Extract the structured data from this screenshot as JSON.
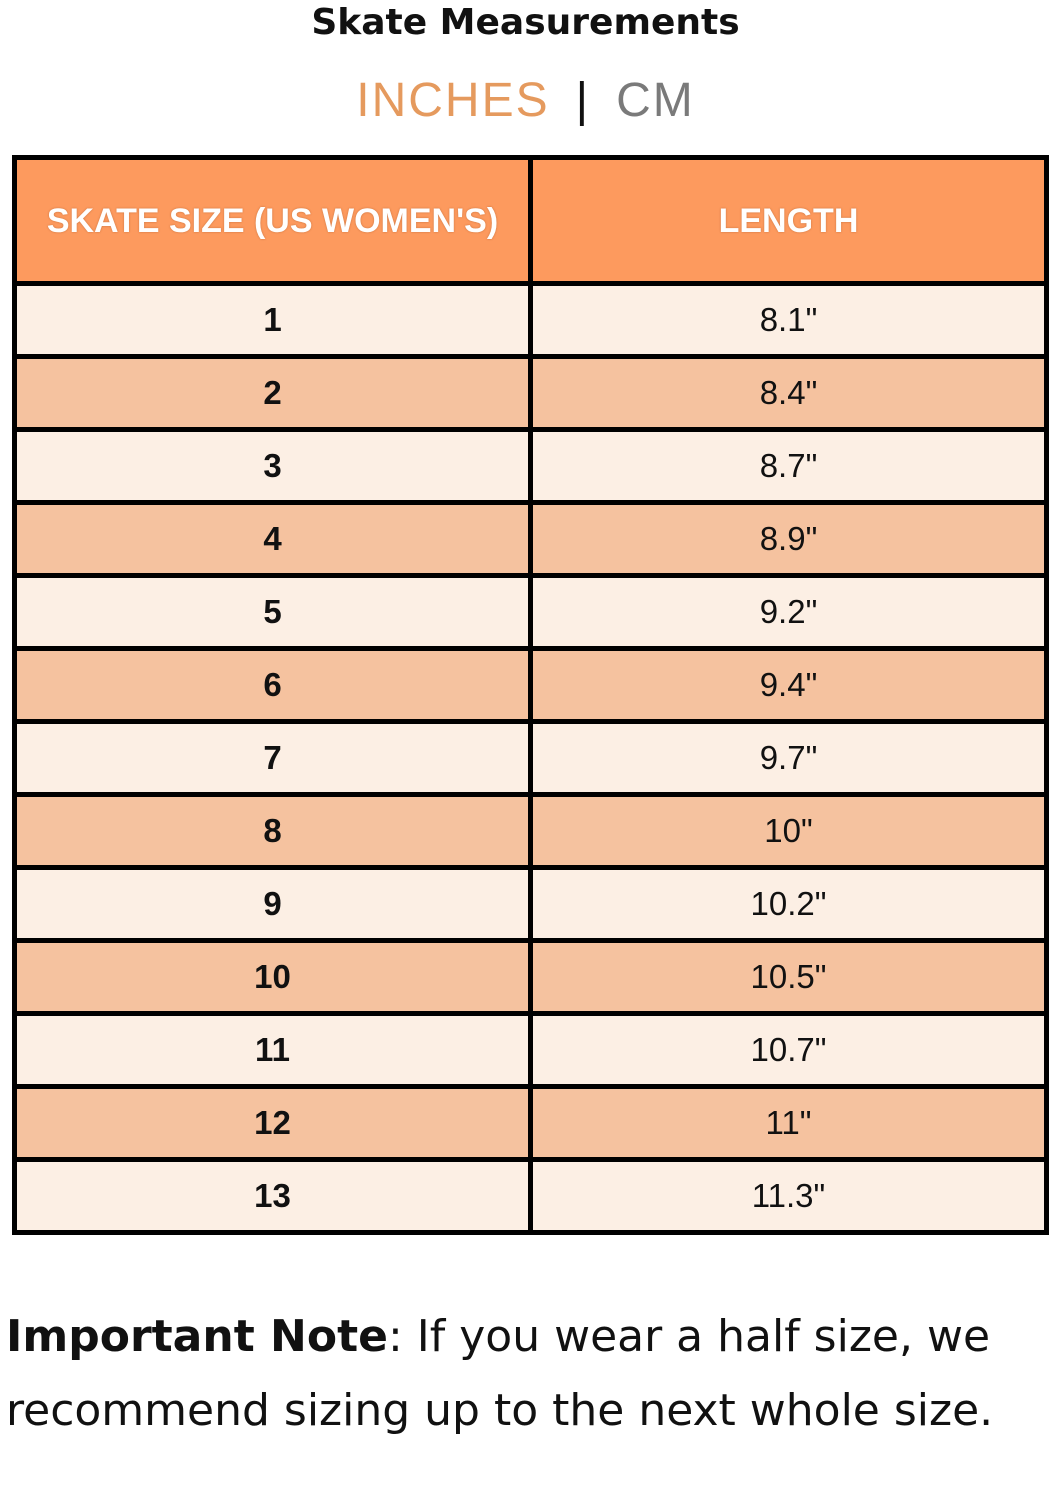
{
  "title": "Skate Measurements",
  "units": {
    "active": "INCHES",
    "separator": "|",
    "inactive": "CM",
    "active_color": "#E59A5E"
  },
  "table": {
    "headers": [
      "SKATE SIZE (US WOMEN'S)",
      "LENGTH"
    ],
    "header_color": "#FD9A5E",
    "rows": [
      {
        "size": "1",
        "length": "8.1\""
      },
      {
        "size": "2",
        "length": "8.4\""
      },
      {
        "size": "3",
        "length": "8.7\""
      },
      {
        "size": "4",
        "length": "8.9\""
      },
      {
        "size": "5",
        "length": "9.2\""
      },
      {
        "size": "6",
        "length": "9.4\""
      },
      {
        "size": "7",
        "length": "9.7\""
      },
      {
        "size": "8",
        "length": "10\""
      },
      {
        "size": "9",
        "length": "10.2\""
      },
      {
        "size": "10",
        "length": "10.5\""
      },
      {
        "size": "11",
        "length": "10.7\""
      },
      {
        "size": "12",
        "length": "11\""
      },
      {
        "size": "13",
        "length": "11.3\""
      }
    ]
  },
  "note": {
    "label": "Important Note",
    "text": ": If you wear a half size, we recommend sizing up to the next whole size."
  }
}
